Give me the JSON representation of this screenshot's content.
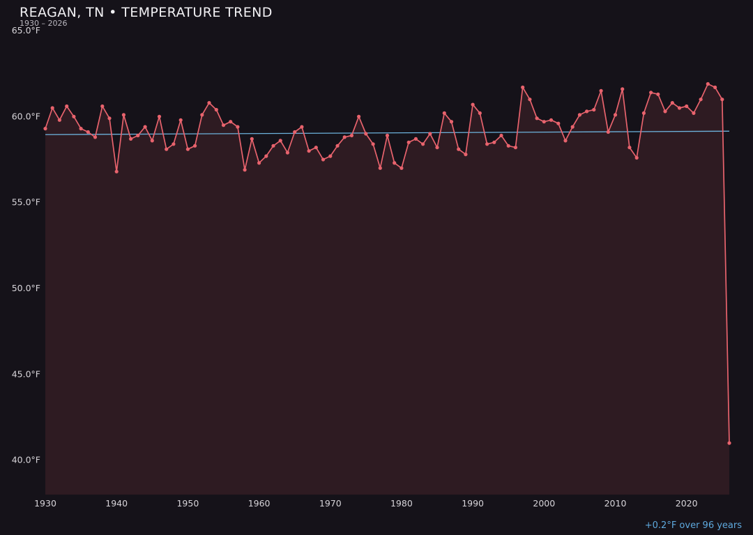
{
  "header": {
    "title": "REAGAN, TN • TEMPERATURE TREND",
    "subtitle": "1930 – 2026"
  },
  "footer": {
    "trend_label": "+0.2°F over 96 years"
  },
  "colors": {
    "background": "#151219",
    "line": "#e8636d",
    "area_fill": "rgba(232,99,109,0.12)",
    "trend": "#6db3dd",
    "axis_text": "#d7d4d9",
    "title_text": "#f2f1f4",
    "footer_text": "#5ea9de"
  },
  "chart_data": {
    "type": "line",
    "title": "REAGAN, TN • TEMPERATURE TREND",
    "subtitle": "1930 – 2026",
    "xlabel": "",
    "ylabel": "°F",
    "xlim": [
      1930,
      2026
    ],
    "ylim": [
      38,
      65
    ],
    "grid": false,
    "legend": false,
    "x_ticks": [
      1930,
      1940,
      1950,
      1960,
      1970,
      1980,
      1990,
      2000,
      2010,
      2020
    ],
    "y_ticks": [
      {
        "value": 65,
        "label": "65.0°F"
      },
      {
        "value": 60,
        "label": "60.0°F"
      },
      {
        "value": 55,
        "label": "55.0°F"
      },
      {
        "value": 50,
        "label": "50.0°F"
      },
      {
        "value": 45,
        "label": "45.0°F"
      },
      {
        "value": 40,
        "label": "40.0°F"
      }
    ],
    "x": [
      1930,
      1931,
      1932,
      1933,
      1934,
      1935,
      1936,
      1937,
      1938,
      1939,
      1940,
      1941,
      1942,
      1943,
      1944,
      1945,
      1946,
      1947,
      1948,
      1949,
      1950,
      1951,
      1952,
      1953,
      1954,
      1955,
      1956,
      1957,
      1958,
      1959,
      1960,
      1961,
      1962,
      1963,
      1964,
      1965,
      1966,
      1967,
      1968,
      1969,
      1970,
      1971,
      1972,
      1973,
      1974,
      1975,
      1976,
      1977,
      1978,
      1979,
      1980,
      1981,
      1982,
      1983,
      1984,
      1985,
      1986,
      1987,
      1988,
      1989,
      1990,
      1991,
      1992,
      1993,
      1994,
      1995,
      1996,
      1997,
      1998,
      1999,
      2000,
      2001,
      2002,
      2003,
      2004,
      2005,
      2006,
      2007,
      2008,
      2009,
      2010,
      2011,
      2012,
      2013,
      2014,
      2015,
      2016,
      2017,
      2018,
      2019,
      2020,
      2021,
      2022,
      2023,
      2024,
      2025,
      2026
    ],
    "values": [
      59.3,
      60.5,
      59.8,
      60.6,
      60.0,
      59.3,
      59.1,
      58.8,
      60.6,
      59.9,
      56.8,
      60.1,
      58.7,
      58.9,
      59.4,
      58.6,
      60.0,
      58.1,
      58.4,
      59.8,
      58.1,
      58.3,
      60.1,
      60.8,
      60.4,
      59.5,
      59.7,
      59.4,
      56.9,
      58.7,
      57.3,
      57.7,
      58.3,
      58.6,
      57.9,
      59.1,
      59.4,
      58.0,
      58.2,
      57.5,
      57.7,
      58.3,
      58.8,
      58.9,
      60.0,
      59.0,
      58.4,
      57.0,
      58.9,
      57.3,
      57.0,
      58.5,
      58.7,
      58.4,
      59.0,
      58.2,
      60.2,
      59.7,
      58.1,
      57.8,
      60.7,
      60.2,
      58.4,
      58.5,
      58.9,
      58.3,
      58.2,
      61.7,
      61.0,
      59.9,
      59.7,
      59.8,
      59.6,
      58.6,
      59.4,
      60.1,
      60.3,
      60.4,
      61.5,
      59.1,
      60.1,
      61.6,
      58.2,
      57.6,
      60.2,
      61.4,
      61.3,
      60.3,
      60.8,
      60.5,
      60.6,
      60.2,
      61.0,
      61.9,
      61.7,
      61.0,
      41.0
    ],
    "trend": {
      "start": 58.95,
      "end": 59.15,
      "label": "+0.2°F over 96 years"
    }
  }
}
